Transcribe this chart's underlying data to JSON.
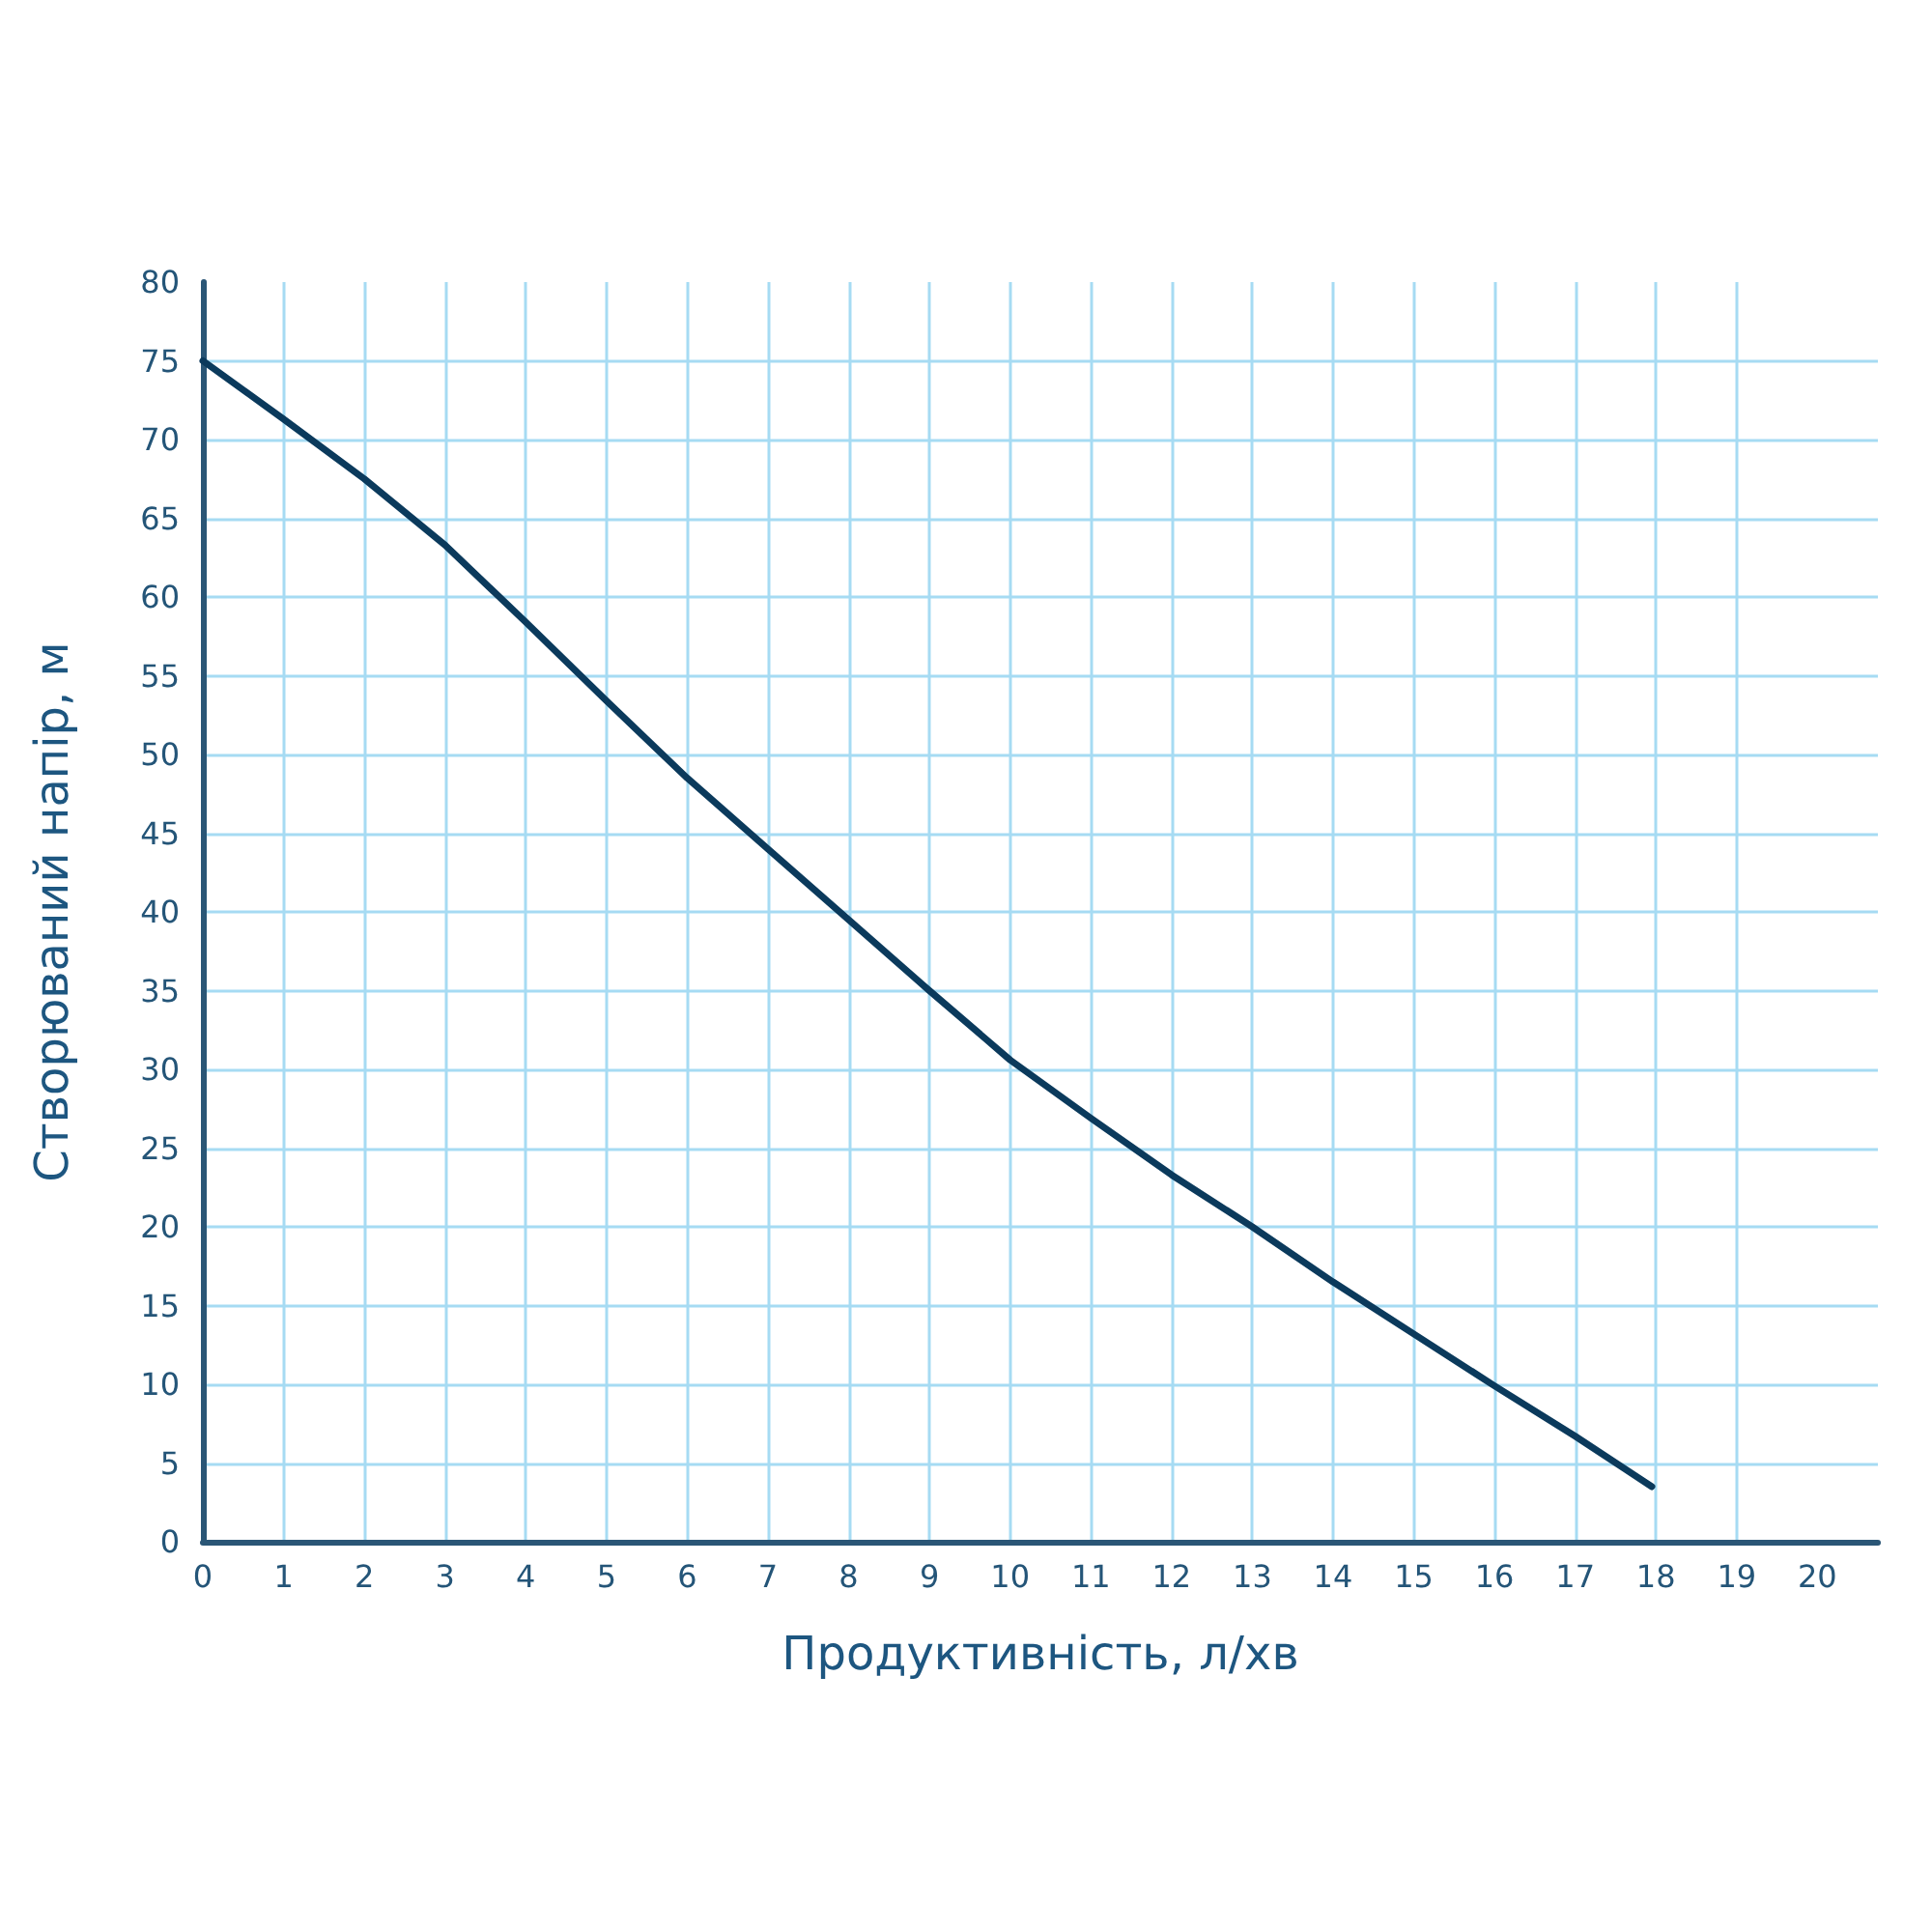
{
  "chart_data": {
    "type": "line",
    "xlabel": "Продуктивність, л/хв",
    "ylabel": "Створюваний напір, м",
    "x": [
      0,
      1,
      2,
      3,
      4,
      5,
      6,
      7,
      8,
      9,
      10,
      11,
      12,
      13,
      14,
      15,
      16,
      17,
      17.95
    ],
    "series": [
      {
        "color": "#0b3a5c",
        "values": [
          75,
          71.3,
          67.5,
          63.3,
          58.4,
          53.4,
          48.5,
          44,
          39.5,
          35,
          30.6,
          26.9,
          23.3,
          20,
          16.5,
          13.2,
          9.9,
          6.7,
          3.5
        ]
      }
    ],
    "xlim": [
      0,
      20.75
    ],
    "xticks": [
      0,
      1,
      2,
      3,
      4,
      5,
      6,
      7,
      8,
      9,
      10,
      11,
      12,
      13,
      14,
      15,
      16,
      17,
      18,
      19,
      20
    ],
    "ylim": [
      0,
      80
    ],
    "yticks": [
      0,
      5,
      10,
      15,
      20,
      25,
      30,
      35,
      40,
      45,
      50,
      55,
      60,
      65,
      70,
      75,
      80
    ],
    "grid": true,
    "line_style": "solid"
  }
}
